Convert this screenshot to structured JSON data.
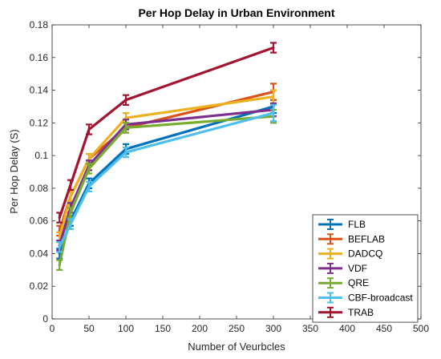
{
  "chart_data": {
    "type": "line",
    "title": "Per Hop Delay in Urban Environment",
    "xlabel": "Number of Veurbcles",
    "ylabel": "Per Hop Delay (S)",
    "xlim": [
      0,
      500
    ],
    "ylim": [
      0,
      0.18
    ],
    "xticks": [
      "0",
      "50",
      "100",
      "150",
      "200",
      "250",
      "300",
      "350",
      "400",
      "450",
      "500"
    ],
    "yticks": [
      "0",
      "0.02",
      "0.04",
      "0.06",
      "0.08",
      "0.1",
      "0.12",
      "0.14",
      "0.16",
      "0.18"
    ],
    "grid": false,
    "legend_position": "bottom-right",
    "error_bars": true,
    "x": [
      10,
      25,
      50,
      100,
      300
    ],
    "series": [
      {
        "name": "FLB",
        "color": "#0072BD",
        "values": [
          0.04,
          0.06,
          0.083,
          0.104,
          0.13
        ],
        "err": [
          0.003,
          0.003,
          0.003,
          0.003,
          0.004
        ]
      },
      {
        "name": "BEFLAB",
        "color": "#D95319",
        "values": [
          0.054,
          0.075,
          0.098,
          0.117,
          0.139
        ],
        "err": [
          0.003,
          0.003,
          0.003,
          0.003,
          0.005
        ]
      },
      {
        "name": "DADCQ",
        "color": "#EDB120",
        "values": [
          0.05,
          0.075,
          0.098,
          0.123,
          0.136
        ],
        "err": [
          0.003,
          0.003,
          0.003,
          0.003,
          0.004
        ]
      },
      {
        "name": "VDF",
        "color": "#7E2F8E",
        "values": [
          0.045,
          0.068,
          0.094,
          0.119,
          0.128
        ],
        "err": [
          0.003,
          0.003,
          0.003,
          0.003,
          0.004
        ]
      },
      {
        "name": "QRE",
        "color": "#77AC30",
        "values": [
          0.033,
          0.065,
          0.092,
          0.117,
          0.124
        ],
        "err": [
          0.003,
          0.003,
          0.003,
          0.003,
          0.004
        ]
      },
      {
        "name": "CBF-broadcast",
        "color": "#4DBEEE",
        "values": [
          0.044,
          0.058,
          0.081,
          0.102,
          0.126
        ],
        "err": [
          0.003,
          0.003,
          0.003,
          0.003,
          0.005
        ]
      },
      {
        "name": "TRAB",
        "color": "#A2142F",
        "values": [
          0.062,
          0.082,
          0.116,
          0.134,
          0.166
        ],
        "err": [
          0.003,
          0.003,
          0.003,
          0.003,
          0.003
        ]
      }
    ]
  }
}
